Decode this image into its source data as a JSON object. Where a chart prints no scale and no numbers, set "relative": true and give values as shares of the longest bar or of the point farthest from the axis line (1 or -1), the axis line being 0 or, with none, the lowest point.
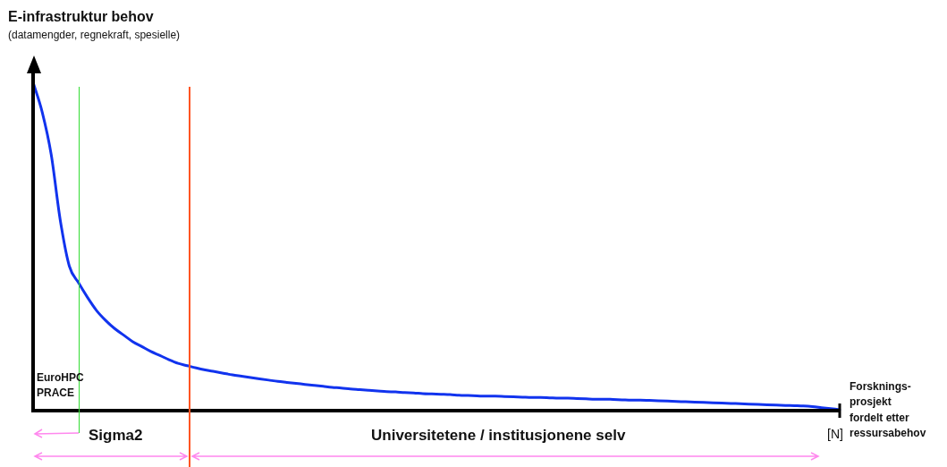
{
  "chart_data": {
    "type": "line",
    "relative": true,
    "title": "E-infrastruktur behov",
    "subtitle": "(datamengder, regnekraft, spesielle)",
    "categories": [
      null,
      null,
      null,
      null,
      null,
      null,
      null,
      null,
      null,
      null,
      null,
      null,
      null,
      null,
      null,
      null,
      null,
      null,
      null,
      null,
      null,
      null,
      null,
      null,
      null,
      null,
      null,
      null,
      null,
      null,
      null,
      null,
      null,
      null,
      null,
      null,
      null,
      null,
      null,
      null,
      null,
      null,
      null,
      null,
      null,
      null,
      null,
      null,
      null,
      null,
      null,
      null,
      null,
      null,
      null,
      null,
      null,
      null,
      null,
      null,
      null,
      null,
      null,
      null,
      null,
      null,
      null,
      null,
      null,
      null,
      null,
      null,
      null,
      null,
      null,
      null,
      null,
      null,
      null,
      null,
      null,
      null,
      null,
      null,
      null,
      null,
      null,
      null,
      null,
      null
    ],
    "series": [
      {
        "color": "#1133ee",
        "values": [
          1.0,
          0.91,
          0.78,
          0.58,
          0.44,
          0.39,
          0.345,
          0.305,
          0.275,
          0.25,
          0.23,
          0.21,
          0.195,
          0.18,
          0.168,
          0.155,
          0.144,
          0.137,
          0.13,
          0.124,
          0.119,
          0.114,
          0.109,
          0.105,
          0.101,
          0.097,
          0.093,
          0.089,
          0.086,
          0.083,
          0.08,
          0.077,
          0.074,
          0.071,
          0.069,
          0.066,
          0.064,
          0.062,
          0.06,
          0.058,
          0.057,
          0.055,
          0.054,
          0.052,
          0.051,
          0.05,
          0.049,
          0.047,
          0.046,
          0.045,
          0.044,
          0.044,
          0.043,
          0.042,
          0.041,
          0.04,
          0.04,
          0.039,
          0.038,
          0.038,
          0.037,
          0.036,
          0.035,
          0.035,
          0.034,
          0.033,
          0.032,
          0.032,
          0.031,
          0.03,
          0.029,
          0.028,
          0.027,
          0.026,
          0.025,
          0.024,
          0.023,
          0.022,
          0.021,
          0.02,
          0.019,
          0.018,
          0.017,
          0.016,
          0.015,
          0.014,
          0.012,
          0.009,
          0.006,
          0.003
        ]
      }
    ],
    "annotations": [
      "[N]",
      "EuroHPC\nPRACE",
      "Sigma2",
      "Universitetene / institusjonene selv",
      "Forsknings-\nprosjekt\nfordelt etter\nressursabehov"
    ],
    "marker": "none",
    "line_style": "solid",
    "grid": false,
    "legend": false
  }
}
